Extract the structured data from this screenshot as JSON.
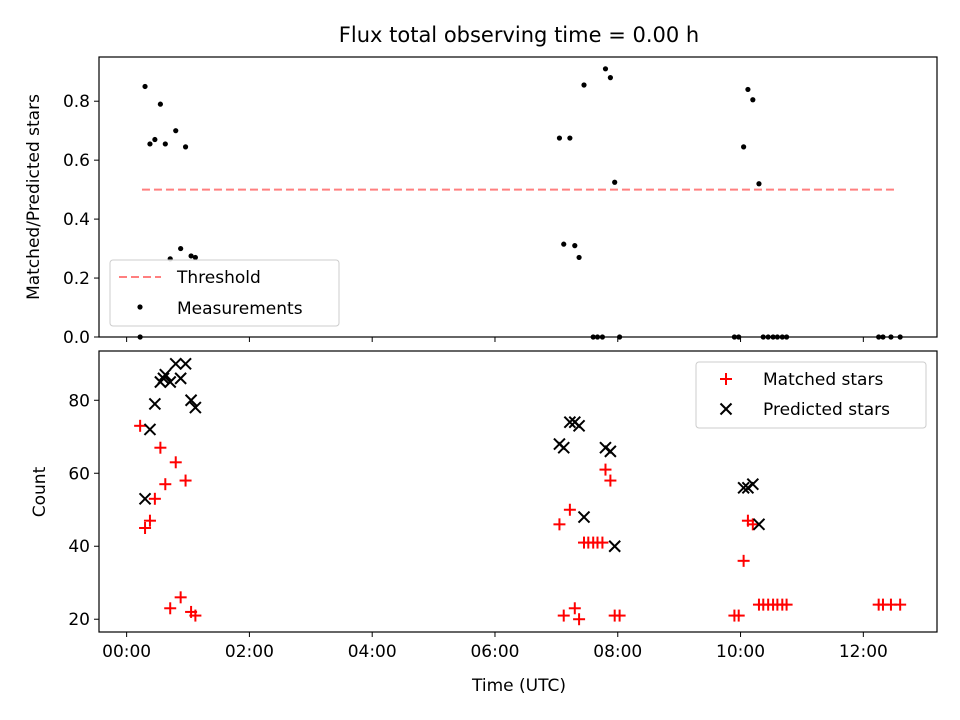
{
  "chart_data": [
    {
      "type": "scatter",
      "title": "Flux total observing time = 0.00 h",
      "xlabel": "",
      "ylabel": "Matched/Predicted stars",
      "ylim": [
        0,
        0.95
      ],
      "yticks": [
        "0.0",
        "0.2",
        "0.4",
        "0.6",
        "0.8"
      ],
      "ytick_values": [
        0,
        0.2,
        0.4,
        0.6,
        0.8
      ],
      "xlim_hours": [
        -0.45,
        13.2
      ],
      "legend_placement": "lower-left",
      "threshold": {
        "name": "Threshold",
        "value": 0.5,
        "x_range_hours": [
          0.25,
          12.55
        ],
        "color": "#ff7f7f",
        "style": "dashed"
      },
      "series": [
        {
          "name": "Measurements",
          "color": "#000000",
          "marker": "dot",
          "points": [
            [
              0.22,
              0.0
            ],
            [
              0.3,
              0.85
            ],
            [
              0.38,
              0.655
            ],
            [
              0.46,
              0.67
            ],
            [
              0.55,
              0.79
            ],
            [
              0.63,
              0.655
            ],
            [
              0.71,
              0.265
            ],
            [
              0.8,
              0.7
            ],
            [
              0.88,
              0.3
            ],
            [
              0.96,
              0.645
            ],
            [
              1.05,
              0.275
            ],
            [
              1.12,
              0.27
            ],
            [
              7.05,
              0.675
            ],
            [
              7.12,
              0.315
            ],
            [
              7.22,
              0.675
            ],
            [
              7.3,
              0.31
            ],
            [
              7.37,
              0.27
            ],
            [
              7.45,
              0.855
            ],
            [
              7.6,
              0.0
            ],
            [
              7.67,
              0.0
            ],
            [
              7.75,
              0.0
            ],
            [
              7.8,
              0.91
            ],
            [
              7.88,
              0.88
            ],
            [
              7.95,
              0.525
            ],
            [
              8.03,
              0.0
            ],
            [
              9.9,
              0.0
            ],
            [
              9.97,
              0.0
            ],
            [
              10.05,
              0.645
            ],
            [
              10.12,
              0.84
            ],
            [
              10.2,
              0.805
            ],
            [
              10.3,
              0.52
            ],
            [
              10.37,
              0.0
            ],
            [
              10.45,
              0.0
            ],
            [
              10.53,
              0.0
            ],
            [
              10.6,
              0.0
            ],
            [
              10.68,
              0.0
            ],
            [
              10.75,
              0.0
            ],
            [
              12.25,
              0.0
            ],
            [
              12.32,
              0.0
            ],
            [
              12.45,
              0.0
            ],
            [
              12.6,
              0.0
            ]
          ]
        }
      ]
    },
    {
      "type": "scatter",
      "title": "",
      "xlabel": "Time (UTC)",
      "ylabel": "Count",
      "ylim": [
        16.5,
        93.5
      ],
      "yticks": [
        "20",
        "40",
        "60",
        "80"
      ],
      "ytick_values": [
        20,
        40,
        60,
        80
      ],
      "xlim_hours": [
        -0.45,
        13.2
      ],
      "xticks": [
        "00:00",
        "02:00",
        "04:00",
        "06:00",
        "08:00",
        "10:00",
        "12:00"
      ],
      "xtick_values_hours": [
        0,
        2,
        4,
        6,
        8,
        10,
        12
      ],
      "legend_placement": "upper-right",
      "series": [
        {
          "name": "Matched stars",
          "color": "#ff0000",
          "marker": "plus",
          "points": [
            [
              0.22,
              73
            ],
            [
              0.3,
              45
            ],
            [
              0.38,
              47
            ],
            [
              0.46,
              53
            ],
            [
              0.55,
              67
            ],
            [
              0.63,
              57
            ],
            [
              0.71,
              23
            ],
            [
              0.8,
              63
            ],
            [
              0.88,
              26
            ],
            [
              0.96,
              58
            ],
            [
              1.05,
              22
            ],
            [
              1.12,
              21
            ],
            [
              7.05,
              46
            ],
            [
              7.12,
              21
            ],
            [
              7.22,
              50
            ],
            [
              7.3,
              23
            ],
            [
              7.37,
              20
            ],
            [
              7.45,
              41
            ],
            [
              7.52,
              41
            ],
            [
              7.6,
              41
            ],
            [
              7.67,
              41
            ],
            [
              7.75,
              41
            ],
            [
              7.8,
              61
            ],
            [
              7.88,
              58
            ],
            [
              7.95,
              21
            ],
            [
              8.03,
              21
            ],
            [
              9.9,
              21
            ],
            [
              9.97,
              21
            ],
            [
              10.05,
              36
            ],
            [
              10.12,
              47
            ],
            [
              10.2,
              46
            ],
            [
              10.3,
              24
            ],
            [
              10.37,
              24
            ],
            [
              10.45,
              24
            ],
            [
              10.53,
              24
            ],
            [
              10.6,
              24
            ],
            [
              10.68,
              24
            ],
            [
              10.75,
              24
            ],
            [
              12.25,
              24
            ],
            [
              12.32,
              24
            ],
            [
              12.45,
              24
            ],
            [
              12.6,
              24
            ]
          ]
        },
        {
          "name": "Predicted stars",
          "color": "#000000",
          "marker": "x",
          "points": [
            [
              0.3,
              53
            ],
            [
              0.38,
              72
            ],
            [
              0.46,
              79
            ],
            [
              0.55,
              85
            ],
            [
              0.6,
              86
            ],
            [
              0.63,
              87
            ],
            [
              0.71,
              85
            ],
            [
              0.8,
              90
            ],
            [
              0.88,
              86
            ],
            [
              0.96,
              90
            ],
            [
              1.05,
              80
            ],
            [
              1.12,
              78
            ],
            [
              7.05,
              68
            ],
            [
              7.12,
              67
            ],
            [
              7.22,
              74
            ],
            [
              7.3,
              74
            ],
            [
              7.37,
              73
            ],
            [
              7.45,
              48
            ],
            [
              7.8,
              67
            ],
            [
              7.88,
              66
            ],
            [
              7.95,
              40
            ],
            [
              10.05,
              56
            ],
            [
              10.12,
              56
            ],
            [
              10.2,
              57
            ],
            [
              10.3,
              46
            ]
          ]
        }
      ]
    }
  ]
}
